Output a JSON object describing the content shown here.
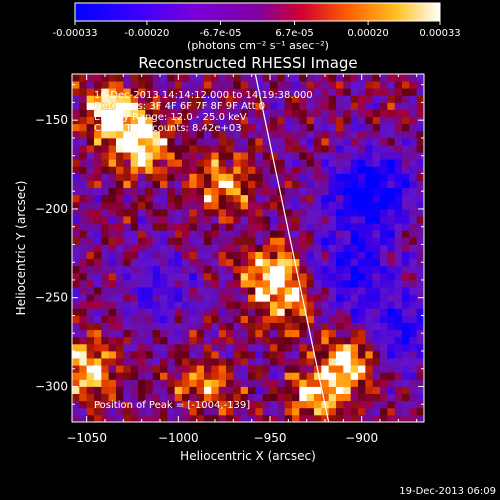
{
  "colorbar": {
    "tick_labels": [
      "-0.00033",
      "-0.00020",
      "-6.7e-05",
      "6.7e-05",
      "0.00020",
      "0.00033"
    ],
    "tick_values": [
      -0.00033,
      -0.0002,
      -6.7e-05,
      6.7e-05,
      0.0002,
      0.00033
    ],
    "range": [
      -0.00033,
      0.00033
    ],
    "unit_label": "(photons cm⁻² s⁻¹ asec⁻²)"
  },
  "annotations": {
    "line1": "16-Dec-2013 14:14:12.000 to 14:19:38.000",
    "line2": "Detectors: 3F 4F 6F 7F 8F 9F  Att 0",
    "line3": "Energy Range: 12.0 - 25.0 keV",
    "line4": "Clean     Total counts: 8.42e+03",
    "peak": "Position of Peak = [-1004,-139]"
  },
  "footer": {
    "timestamp": "19-Dec-2013 06:09"
  },
  "colors": {
    "background": "#000000",
    "frame": "#ffffff",
    "limb_line": "#ffffff"
  },
  "chart_data": {
    "type": "heatmap",
    "title": "Reconstructed RHESSI Image",
    "xlabel": "Heliocentric X (arcsec)",
    "ylabel": "Heliocentric Y (arcsec)",
    "xlim": [
      -1058,
      -866
    ],
    "ylim": [
      -320,
      -124
    ],
    "x_ticks": [
      -1050,
      -1000,
      -950,
      -900
    ],
    "y_ticks": [
      -300,
      -250,
      -200,
      -150
    ],
    "x_tick_labels": [
      "−1050",
      "−1000",
      "−950",
      "−900"
    ],
    "y_tick_labels": [
      "−300",
      "−250",
      "−200",
      "−150"
    ],
    "colormap": "rhessi-blue-purple-red-yellow-white",
    "peak_position": [
      -1004,
      -139
    ],
    "limb_line": {
      "x": [
        -958,
        -918
      ],
      "y": [
        -124,
        -320
      ]
    },
    "hot_regions": [
      {
        "x": -1035,
        "y": -145,
        "level": 1.0
      },
      {
        "x": -1020,
        "y": -165,
        "level": 0.9
      },
      {
        "x": -975,
        "y": -185,
        "level": 0.7
      },
      {
        "x": -948,
        "y": -235,
        "level": 0.85
      },
      {
        "x": -940,
        "y": -255,
        "level": 0.6
      },
      {
        "x": -905,
        "y": -285,
        "level": 0.9
      },
      {
        "x": -925,
        "y": -305,
        "level": 0.7
      },
      {
        "x": -1050,
        "y": -290,
        "level": 0.85
      },
      {
        "x": -985,
        "y": -300,
        "level": 0.6
      }
    ],
    "cold_regions": [
      {
        "x": -895,
        "y": -190,
        "level": -1.0
      },
      {
        "x": -905,
        "y": -235,
        "level": -0.7
      },
      {
        "x": -880,
        "y": -270,
        "level": -0.6
      },
      {
        "x": -1010,
        "y": -245,
        "level": -0.4
      }
    ]
  }
}
